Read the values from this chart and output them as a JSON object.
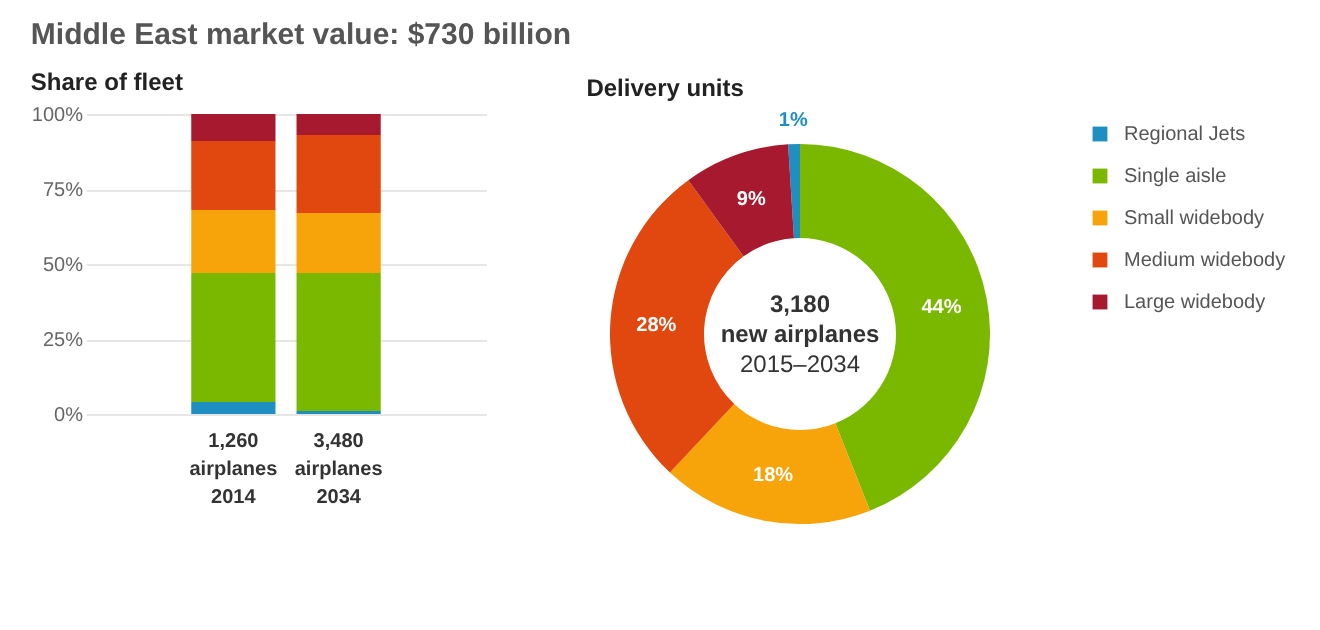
{
  "chart_data": [
    {
      "type": "bar",
      "stacked": true,
      "title": "Middle East market value: $730 billion",
      "subtitle": "Share of fleet",
      "categories": [
        "1,260\nairplanes\n2014",
        "3,480\nairplanes\n2034"
      ],
      "series": [
        {
          "color": "#1f8fc1",
          "values": [
            4,
            1
          ]
        },
        {
          "color": "#7ab800",
          "values": [
            43,
            46
          ]
        },
        {
          "color": "#f7a30a",
          "values": [
            21,
            20
          ]
        },
        {
          "color": "#e0480f",
          "values": [
            23,
            26
          ]
        },
        {
          "color": "#a6192e",
          "values": [
            9,
            7
          ]
        }
      ],
      "ylim": [
        0,
        100
      ],
      "yticks": [
        {
          "value": 0,
          "label": "0%"
        },
        {
          "value": 25,
          "label": "25%"
        },
        {
          "value": 50,
          "label": "50%"
        },
        {
          "value": 75,
          "label": "75%"
        },
        {
          "value": 100,
          "label": "100%"
        }
      ],
      "grid": "y"
    },
    {
      "type": "donut",
      "title": "Delivery units",
      "categories": [
        "Regional Jets",
        "Single aisle",
        "Small widebody",
        "Medium widebody",
        "Large widebody"
      ],
      "values": [
        1,
        44,
        18,
        28,
        9
      ],
      "colors": [
        "#1f8fc1",
        "#7ab800",
        "#f7a30a",
        "#e0480f",
        "#a6192e"
      ],
      "value_labels": [
        "1%",
        "44%",
        "18%",
        "28%",
        "9%"
      ],
      "legend": "right",
      "annotations": [
        "3,180",
        "new airplanes",
        "2015–2034"
      ]
    }
  ]
}
